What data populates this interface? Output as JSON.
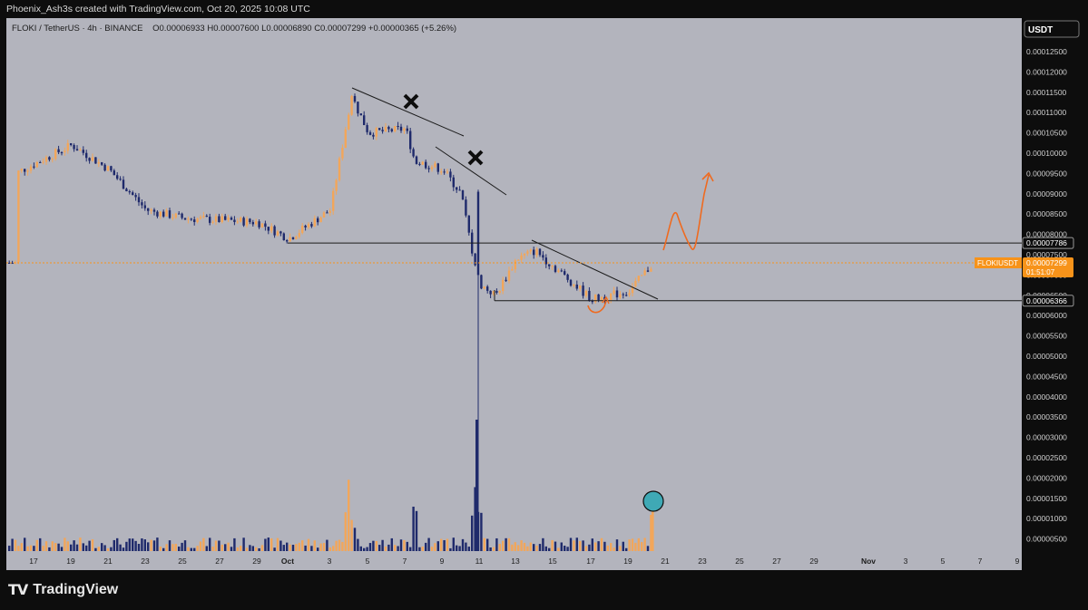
{
  "header": {
    "attribution": "Phoenix_Ash3s created with TradingView.com, Oct 20, 2025 10:08 UTC"
  },
  "legend": {
    "symbol": "FLOKI / TetherUS · 4h · BINANCE",
    "open": "O0.00006933",
    "high": "H0.00007600",
    "low": "L0.00006890",
    "close": "C0.00007299",
    "change": "+0.00000365 (+5.26%)"
  },
  "currency_button": "USDT",
  "price_labels": {
    "resistance": "0.00007786",
    "current_symbol": "FLOKIUSDT",
    "current_price": "0.00007299",
    "countdown": "01:51:07",
    "support": "0.00006366"
  },
  "brand": "TradingView",
  "colors": {
    "background": "#b3b4bd",
    "up": "#f2a65a",
    "down": "#1f2a6b",
    "projection": "#ef6a1f",
    "current": "#f7931a"
  },
  "chart_data": {
    "type": "candlestick",
    "symbol": "FLOKI / TetherUS",
    "timeframe": "4h",
    "y_ticks": [
      "0.00012500",
      "0.00012000",
      "0.00011500",
      "0.00011000",
      "0.00010500",
      "0.00010000",
      "0.00009500",
      "0.00009000",
      "0.00008500",
      "0.00008000",
      "0.00007500",
      "0.00007000",
      "0.00006500",
      "0.00006000",
      "0.00005500",
      "0.00005000",
      "0.00004500",
      "0.00004000",
      "0.00003500",
      "0.00003000",
      "0.00002500",
      "0.00002000",
      "0.00001500",
      "0.00001000",
      "0.00000500"
    ],
    "x_ticks": [
      "17",
      "19",
      "21",
      "23",
      "25",
      "27",
      "29",
      "Oct",
      "3",
      "5",
      "7",
      "9",
      "11",
      "13",
      "15",
      "17",
      "19",
      "21",
      "23",
      "25",
      "27",
      "29",
      "Nov",
      "3",
      "5",
      "7",
      "9"
    ],
    "ylim": [
      2.7e-06,
      0.0001302
    ],
    "key_levels": {
      "resistance": 7.786e-05,
      "support": 6.366e-05,
      "current": 7.299e-05
    },
    "path": [
      [
        "17",
        9.5e-05
      ],
      [
        "19",
        0.000102
      ],
      [
        "21",
        9.6e-05
      ],
      [
        "23",
        8.6e-05
      ],
      [
        "25",
        8.4e-05
      ],
      [
        "27",
        8.35e-05
      ],
      [
        "29",
        8.3e-05
      ],
      [
        "Oct",
        7.9e-05
      ],
      [
        "3",
        8.6e-05
      ],
      [
        "4",
        0.000114
      ],
      [
        "5",
        0.000105
      ],
      [
        "7",
        0.000106
      ],
      [
        "8",
        9.8e-05
      ],
      [
        "9",
        9.6e-05
      ],
      [
        "10",
        9e-05
      ],
      [
        "11",
        6.8e-05
      ],
      [
        "12",
        6.5e-05
      ],
      [
        "13",
        7.4e-05
      ],
      [
        "14",
        7.6e-05
      ],
      [
        "15",
        7.2e-05
      ],
      [
        "17",
        6.4e-05
      ],
      [
        "19",
        6.6e-05
      ],
      [
        "20",
        7.3e-05
      ]
    ],
    "flash_crash_low": 3e-06
  }
}
